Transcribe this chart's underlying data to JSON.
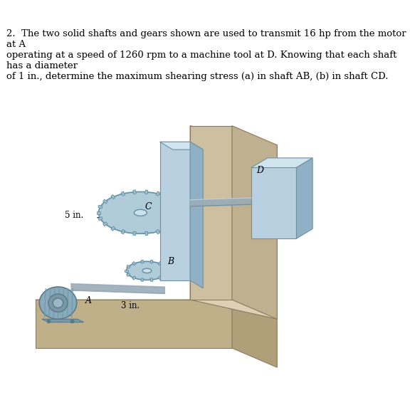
{
  "title_text": "2.  The two solid shafts and gears shown are used to transmit 16 hp from the motor at A\noperating at a speed of 1260 rpm to a machine tool at D. Knowing that each shaft has a diameter\nof 1 in., determine the maximum shearing stress (a) in shaft AB, (b) in shaft CD.",
  "label_A": "A",
  "label_B": "B",
  "label_C": "C",
  "label_D": "D",
  "label_5in": "5 in.",
  "label_3in": "3 in.",
  "bg_color": "#ffffff",
  "platform_color_top": "#d4c5a9",
  "platform_color_side": "#b8a882",
  "platform_color_front": "#c9b99a",
  "wall_color_front": "#d4c5a9",
  "wall_color_side": "#c0ad8e",
  "wall_color_top": "#e0d3b8",
  "gear_large_color": "#a8c8d8",
  "gear_small_color": "#a8c8d8",
  "shaft_color": "#b0b8c0",
  "motor_color": "#90aabb",
  "box_color": "#b8d0e0",
  "plate_color": "#b8d0e0",
  "text_fontsize": 9.5,
  "label_fontsize": 9
}
